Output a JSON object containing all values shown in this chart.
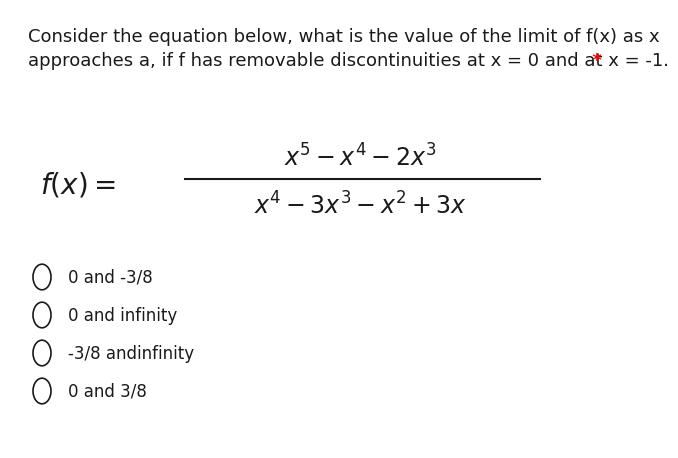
{
  "background_color": "#ffffff",
  "question_line1": "Consider the equation below, what is the value of the limit of f(x) as x",
  "question_line2": "approaches a, if f has removable discontinuities at x = 0 and at x = -1.",
  "asterisk": " *",
  "numerator": "$x^5 - x^4 - 2x^3$",
  "denominator": "$x^4 - 3x^3 - x^2 + 3x$",
  "fx_label": "$f(x) =$",
  "options": [
    "0 and -3/8",
    "0 and infinity",
    "-3/8 andinfinity",
    "0 and 3/8"
  ],
  "text_color": "#1a1a1a",
  "option_fontsize": 12,
  "question_fontsize": 13,
  "eq_fontsize": 17,
  "fx_fontsize": 20
}
